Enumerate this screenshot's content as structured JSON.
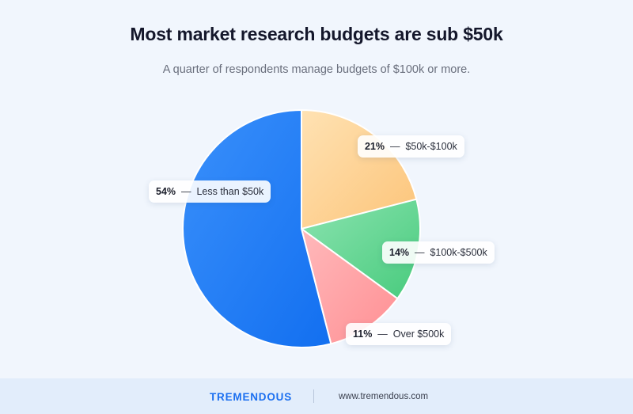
{
  "title": "Most market research budgets are sub $50k",
  "subtitle": "A quarter of respondents manage budgets of $100k or more.",
  "chart_data": {
    "type": "pie",
    "title": "Most market research budgets are sub $50k",
    "subtitle": "A quarter of respondents manage budgets of $100k or more.",
    "slices": [
      {
        "label": "$50k-$100k",
        "value": 21,
        "pct_text": "21%",
        "color": "#fdd08c"
      },
      {
        "label": "$100k-$500k",
        "value": 14,
        "pct_text": "14%",
        "color": "#5fd68f"
      },
      {
        "label": "Over $500k",
        "value": 11,
        "pct_text": "11%",
        "color": "#ff9ea0"
      },
      {
        "label": "Less than $50k",
        "value": 54,
        "pct_text": "54%",
        "color": "#1f7ef7"
      }
    ]
  },
  "footer": {
    "brand": "TREMENDOUS",
    "url": "www.tremendous.com"
  }
}
